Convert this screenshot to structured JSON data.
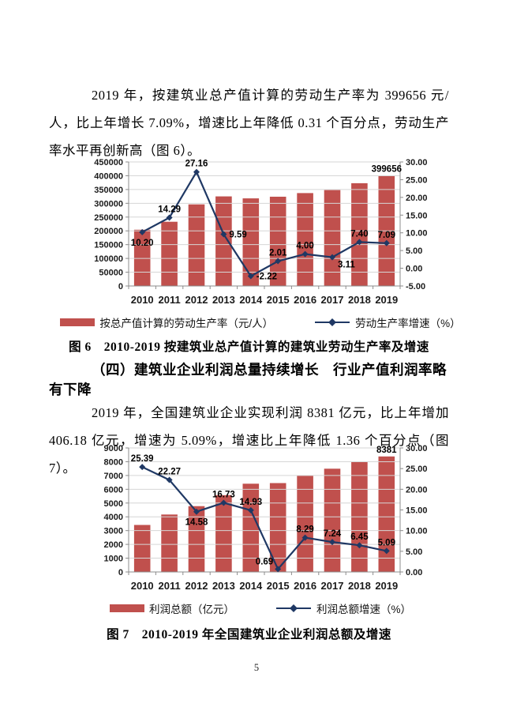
{
  "page": {
    "number": "5"
  },
  "paragraph1": "2019 年，按建筑业总产值计算的劳动生产率为 399656 元/人，比上年增长 7.09%，增速比上年降低 0.31 个百分点，劳动生产率水平再创新高（图 6）。",
  "figure6_caption": "图 6　2010-2019 按建筑业总产值计算的建筑业劳动生产率及增速",
  "section_heading": "（四）建筑业企业利润总量持续增长　行业产值利润率略有下降",
  "paragraph2": "2019 年，全国建筑业企业实现利润 8381 亿元，比上年增加 406.18 亿元，增速为 5.09%，增速比上年降低 1.36 个百分点（图 7）。",
  "figure7_caption": "图 7　2010-2019 年全国建筑业企业利润总额及增速",
  "colors": {
    "bar": "#C0504D",
    "line": "#1F3864",
    "grid": "#D6D6D6",
    "axis": "#8C8C8C",
    "label": "#000000"
  },
  "chart_data": [
    {
      "type": "bar",
      "subtype": "bar+line combo, dual axis",
      "title": "2010-2019 按建筑业总产值计算的建筑业劳动生产率及增速",
      "categories": [
        "2010",
        "2011",
        "2012",
        "2013",
        "2014",
        "2015",
        "2016",
        "2017",
        "2018",
        "2019"
      ],
      "left_axis": {
        "min": 0,
        "max": 450000,
        "step": 50000
      },
      "right_axis": {
        "min": -5,
        "max": 30,
        "step": 5,
        "decimals": 2
      },
      "grid": "horizontal",
      "legend_position": "bottom",
      "series": [
        {
          "name": "按总产值计算的劳动生产率（元/人）",
          "type": "bar",
          "axis": "left",
          "values": [
            204000,
            233000,
            296000,
            325000,
            318000,
            324000,
            337000,
            348000,
            373000,
            399656
          ],
          "point_labels": [
            "",
            "",
            "",
            "",
            "",
            "",
            "",
            "",
            "",
            "399656"
          ]
        },
        {
          "name": "劳动生产率增速（%）",
          "type": "line",
          "axis": "right",
          "values": [
            10.2,
            14.29,
            27.16,
            9.59,
            -2.22,
            2.01,
            4.0,
            3.11,
            7.4,
            7.09
          ],
          "point_labels": [
            "10.20",
            "14.29",
            "27.16",
            "9.59",
            "-2.22",
            "2.01",
            "4.00",
            "3.11",
            "7.40",
            "7.09"
          ],
          "label_placements": [
            "below",
            "above",
            "above",
            "right",
            "right",
            "above",
            "above",
            "right-below",
            "above",
            "above"
          ]
        }
      ]
    },
    {
      "type": "bar",
      "subtype": "bar+line combo, dual axis",
      "title": "2010-2019 年全国建筑业企业利润总额及增速",
      "categories": [
        "2010",
        "2011",
        "2012",
        "2013",
        "2014",
        "2015",
        "2016",
        "2017",
        "2018",
        "2019"
      ],
      "left_axis": {
        "min": 0,
        "max": 9000,
        "step": 1000
      },
      "right_axis": {
        "min": 0,
        "max": 30,
        "step": 5,
        "decimals": 2
      },
      "grid": "horizontal",
      "legend_position": "bottom",
      "series": [
        {
          "name": "利润总额（亿元）",
          "type": "bar",
          "axis": "left",
          "values": [
            3408,
            4167,
            4775,
            5574,
            6406,
            6450,
            6985,
            7491,
            7975,
            8381
          ],
          "point_labels": [
            "",
            "",
            "",
            "",
            "",
            "",
            "",
            "",
            "",
            "8381"
          ]
        },
        {
          "name": "利润总额增速（%）",
          "type": "line",
          "axis": "right",
          "values": [
            25.39,
            22.27,
            14.58,
            16.73,
            14.93,
            0.69,
            8.29,
            7.24,
            6.45,
            5.09
          ],
          "point_labels": [
            "25.39",
            "22.27",
            "14.58",
            "16.73",
            "14.93",
            "0.69",
            "8.29",
            "7.24",
            "6.45",
            "5.09"
          ],
          "label_placements": [
            "above",
            "above",
            "below",
            "above",
            "above",
            "left",
            "above",
            "above",
            "above",
            "above"
          ]
        }
      ]
    }
  ]
}
